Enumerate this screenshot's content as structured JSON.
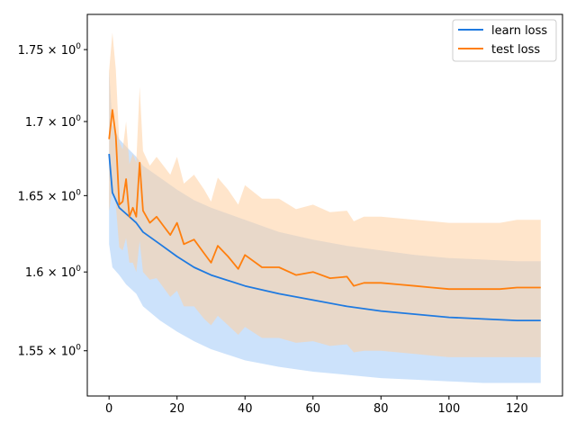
{
  "chart_data": {
    "type": "line",
    "title": "",
    "xlabel": "",
    "ylabel": "",
    "yscale": "log",
    "xlim": [
      -6.4,
      133.4
    ],
    "ylim": [
      1.522,
      1.775
    ],
    "x_ticks": [
      0,
      20,
      40,
      60,
      80,
      100,
      120
    ],
    "x_tick_labels": [
      "0",
      "20",
      "40",
      "60",
      "80",
      "100",
      "120"
    ],
    "y_ticks": [
      1.55,
      1.6,
      1.65,
      1.7,
      1.75
    ],
    "y_tick_labels": [
      "1.55 × 10^0",
      "1.6 × 10^0",
      "1.65 × 10^0",
      "1.7 × 10^0",
      "1.75 × 10^0"
    ],
    "y_tick_mantissas": [
      "1.55",
      "1.6",
      "1.65",
      "1.7",
      "1.75"
    ],
    "y_tick_base": "10",
    "y_tick_exponent": "0",
    "grid": false,
    "legend_position": "top-right",
    "colors": {
      "learn_line": "#1f7ae0",
      "learn_band": "#a3cbf7",
      "test_line": "#ff7f0e",
      "test_band": "#ffcfa0"
    },
    "series": [
      {
        "name": "learn loss",
        "x": [
          0,
          1,
          3,
          5,
          8,
          10,
          15,
          20,
          25,
          30,
          40,
          50,
          60,
          70,
          80,
          90,
          100,
          110,
          120,
          127
        ],
        "values": [
          1.678,
          1.652,
          1.642,
          1.638,
          1.632,
          1.626,
          1.618,
          1.61,
          1.603,
          1.598,
          1.591,
          1.586,
          1.582,
          1.578,
          1.575,
          1.573,
          1.571,
          1.57,
          1.569,
          1.569
        ],
        "lower": [
          1.618,
          1.603,
          1.598,
          1.592,
          1.586,
          1.578,
          1.569,
          1.562,
          1.556,
          1.551,
          1.544,
          1.54,
          1.537,
          1.535,
          1.533,
          1.532,
          1.531,
          1.53,
          1.53,
          1.53
        ],
        "upper": [
          1.736,
          1.698,
          1.688,
          1.683,
          1.676,
          1.67,
          1.662,
          1.654,
          1.647,
          1.642,
          1.634,
          1.626,
          1.621,
          1.617,
          1.614,
          1.611,
          1.609,
          1.608,
          1.607,
          1.607
        ]
      },
      {
        "name": "test loss",
        "x": [
          0,
          1,
          2,
          3,
          4,
          5,
          6,
          7,
          8,
          9,
          10,
          12,
          14,
          16,
          18,
          20,
          22,
          25,
          28,
          30,
          32,
          35,
          38,
          40,
          45,
          50,
          55,
          60,
          65,
          70,
          72,
          75,
          80,
          85,
          90,
          95,
          100,
          105,
          110,
          115,
          120,
          127
        ],
        "values": [
          1.688,
          1.708,
          1.69,
          1.644,
          1.646,
          1.661,
          1.636,
          1.642,
          1.636,
          1.672,
          1.64,
          1.632,
          1.636,
          1.63,
          1.624,
          1.632,
          1.618,
          1.621,
          1.612,
          1.606,
          1.617,
          1.61,
          1.602,
          1.611,
          1.603,
          1.603,
          1.598,
          1.6,
          1.596,
          1.597,
          1.591,
          1.593,
          1.593,
          1.592,
          1.591,
          1.59,
          1.589,
          1.589,
          1.589,
          1.589,
          1.59,
          1.59
        ],
        "lower": [
          1.64,
          1.654,
          1.644,
          1.616,
          1.614,
          1.622,
          1.606,
          1.606,
          1.6,
          1.62,
          1.6,
          1.595,
          1.596,
          1.59,
          1.584,
          1.588,
          1.578,
          1.578,
          1.57,
          1.566,
          1.572,
          1.566,
          1.56,
          1.565,
          1.558,
          1.558,
          1.555,
          1.556,
          1.553,
          1.554,
          1.549,
          1.55,
          1.55,
          1.549,
          1.548,
          1.547,
          1.546,
          1.546,
          1.546,
          1.546,
          1.546,
          1.546
        ],
        "upper": [
          1.735,
          1.762,
          1.736,
          1.686,
          1.681,
          1.7,
          1.671,
          1.678,
          1.672,
          1.724,
          1.68,
          1.67,
          1.676,
          1.67,
          1.664,
          1.676,
          1.658,
          1.664,
          1.654,
          1.646,
          1.662,
          1.654,
          1.644,
          1.657,
          1.648,
          1.648,
          1.641,
          1.644,
          1.639,
          1.64,
          1.633,
          1.636,
          1.636,
          1.635,
          1.634,
          1.633,
          1.632,
          1.632,
          1.632,
          1.632,
          1.634,
          1.634
        ]
      }
    ]
  }
}
